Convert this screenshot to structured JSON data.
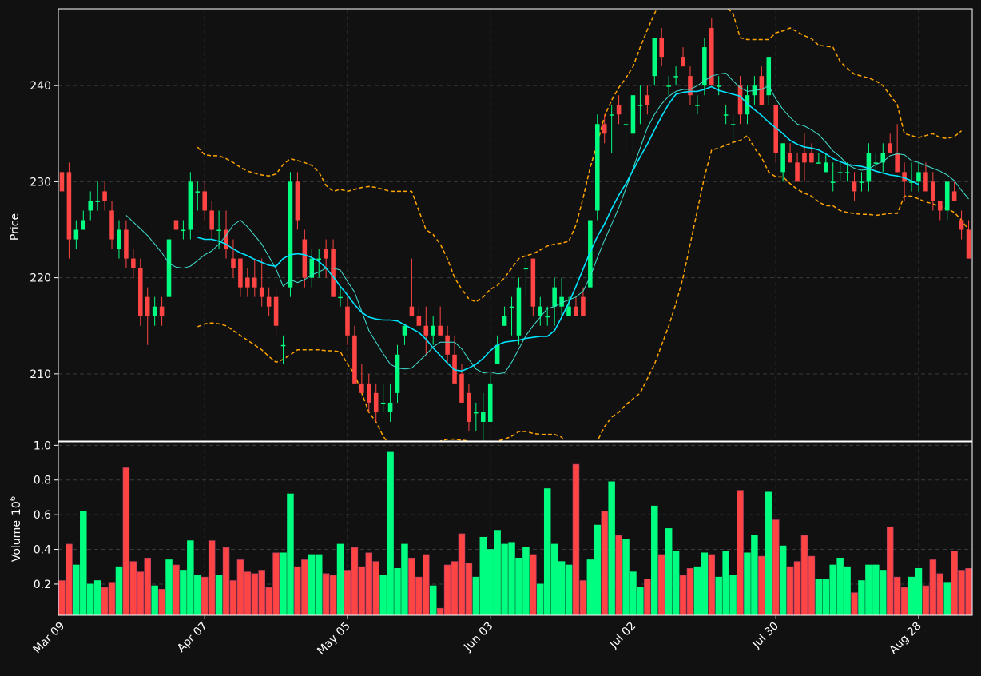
{
  "colors": {
    "background": "#111111",
    "frame": "#ffffff",
    "grid": "#3a3a3a",
    "up": "#00ff80",
    "down": "#ff4444",
    "ma_fast": "#40e0d0",
    "ma_slow": "#00e5ff",
    "bands": "#ffa500",
    "text": "#ffffff"
  },
  "chart_data": {
    "type": "candlestick",
    "title": "",
    "price_panel": {
      "ylabel": "Price",
      "ylim": [
        203,
        248
      ],
      "yticks": [
        210,
        220,
        230,
        240
      ],
      "grid": true
    },
    "volume_panel": {
      "ylabel": "Volume",
      "ylabel_exponent": "6",
      "ylim": [
        0.02,
        1.02
      ],
      "yticks": [
        0.2,
        0.4,
        0.6,
        0.8,
        1.0
      ],
      "grid": true
    },
    "x_ticks": [
      {
        "label": "Mar 09",
        "index": 0
      },
      {
        "label": "Apr 07",
        "index": 20
      },
      {
        "label": "May 05",
        "index": 40
      },
      {
        "label": "Jun 03",
        "index": 60
      },
      {
        "label": "Jul 02",
        "index": 80
      },
      {
        "label": "Jul 30",
        "index": 100
      },
      {
        "label": "Aug 28",
        "index": 120
      }
    ],
    "candles": [
      [
        231,
        232,
        228,
        229
      ],
      [
        231,
        232,
        222,
        224
      ],
      [
        224,
        226,
        223,
        225
      ],
      [
        225,
        227,
        225,
        226
      ],
      [
        227,
        229,
        226,
        228
      ],
      [
        228,
        230,
        227,
        228
      ],
      [
        229,
        230,
        227,
        228
      ],
      [
        227,
        228,
        223,
        224
      ],
      [
        223,
        226,
        222,
        225
      ],
      [
        225,
        226,
        221,
        222
      ],
      [
        222,
        223,
        220,
        221
      ],
      [
        221,
        222,
        215,
        216
      ],
      [
        218,
        219,
        213,
        216
      ],
      [
        216,
        218,
        215,
        217
      ],
      [
        217,
        218,
        215,
        216
      ],
      [
        218,
        225,
        218,
        224
      ],
      [
        226,
        226,
        225,
        225
      ],
      [
        225,
        226,
        224,
        225
      ],
      [
        225,
        231,
        224,
        230
      ],
      [
        229,
        230,
        227,
        229
      ],
      [
        229,
        230,
        226,
        227
      ],
      [
        227,
        228,
        224,
        225
      ],
      [
        225,
        227,
        223,
        225
      ],
      [
        225,
        227,
        222,
        223
      ],
      [
        222,
        224,
        220,
        221
      ],
      [
        222,
        222,
        218,
        219
      ],
      [
        220,
        221,
        218,
        219
      ],
      [
        220,
        222,
        218,
        219
      ],
      [
        219,
        222,
        217,
        218
      ],
      [
        218,
        219,
        216,
        217
      ],
      [
        218,
        219,
        214,
        215
      ],
      [
        213,
        214,
        211,
        213
      ],
      [
        219,
        231,
        218,
        230
      ],
      [
        230,
        231,
        225,
        226
      ],
      [
        224,
        225,
        219,
        220
      ],
      [
        220,
        223,
        219,
        222
      ],
      [
        222,
        223,
        220,
        222
      ],
      [
        223,
        224,
        220,
        222
      ],
      [
        223,
        224,
        218,
        218
      ],
      [
        218,
        219,
        217,
        218
      ],
      [
        217,
        218,
        213,
        214
      ],
      [
        214,
        215,
        209,
        209
      ],
      [
        209,
        211,
        208,
        208
      ],
      [
        209,
        210,
        206,
        207
      ],
      [
        208,
        209,
        205,
        206
      ],
      [
        207,
        209,
        206,
        207
      ],
      [
        206,
        209,
        205,
        207
      ],
      [
        208,
        213,
        207,
        212
      ],
      [
        214,
        215,
        213,
        215
      ],
      [
        217,
        222,
        216,
        216
      ],
      [
        216,
        217,
        215,
        215
      ],
      [
        215,
        217,
        212,
        214
      ],
      [
        214,
        216,
        213,
        215
      ],
      [
        215,
        217,
        214,
        214
      ],
      [
        214,
        215,
        211,
        212
      ],
      [
        212,
        214,
        209,
        209
      ],
      [
        210,
        211,
        207,
        207
      ],
      [
        208,
        209,
        204,
        205
      ],
      [
        206,
        207,
        204,
        206
      ],
      [
        205,
        208,
        203,
        206
      ],
      [
        205,
        210,
        205,
        209
      ],
      [
        211,
        214,
        211,
        213
      ],
      [
        215,
        217,
        215,
        216
      ],
      [
        217,
        218,
        214,
        217
      ],
      [
        214,
        220,
        213,
        219
      ],
      [
        221,
        222,
        218,
        221
      ],
      [
        222,
        222,
        216,
        217
      ],
      [
        216,
        218,
        215,
        217
      ],
      [
        216,
        217,
        215,
        216
      ],
      [
        217,
        220,
        215,
        219
      ],
      [
        217,
        220,
        216,
        218
      ],
      [
        216,
        218,
        216,
        217
      ],
      [
        217,
        218,
        216,
        216
      ],
      [
        218,
        219,
        216,
        216
      ],
      [
        219,
        226,
        219,
        226
      ],
      [
        227,
        237,
        226,
        236
      ],
      [
        236,
        237,
        234,
        235
      ],
      [
        237,
        238,
        233,
        237
      ],
      [
        238,
        239,
        236,
        237
      ],
      [
        236,
        237,
        233,
        236
      ],
      [
        235,
        239,
        233,
        239
      ],
      [
        238,
        240,
        236,
        238
      ],
      [
        239,
        240,
        237,
        238
      ],
      [
        241,
        245,
        240,
        245
      ],
      [
        245,
        246,
        242,
        243
      ],
      [
        240,
        241,
        239,
        240
      ],
      [
        241,
        242,
        240,
        241
      ],
      [
        243,
        244,
        242,
        242
      ],
      [
        241,
        242,
        238,
        239
      ],
      [
        238,
        239,
        237,
        238
      ],
      [
        240,
        245,
        239,
        244
      ],
      [
        246,
        247,
        240,
        240
      ],
      [
        240,
        241,
        239,
        240
      ],
      [
        237,
        238,
        236,
        237
      ],
      [
        236,
        237,
        234,
        236
      ],
      [
        240,
        241,
        236,
        237
      ],
      [
        237,
        240,
        236,
        239
      ],
      [
        239,
        241,
        238,
        240
      ],
      [
        241,
        242,
        238,
        238
      ],
      [
        239,
        243,
        238,
        243
      ],
      [
        238,
        238,
        232,
        233
      ],
      [
        231,
        234,
        230,
        234
      ],
      [
        233,
        234,
        232,
        232
      ],
      [
        232,
        233,
        230,
        230
      ],
      [
        233,
        235,
        230,
        232
      ],
      [
        233,
        234,
        232,
        232
      ],
      [
        232,
        233,
        232,
        232
      ],
      [
        231,
        233,
        231,
        232
      ],
      [
        230,
        232,
        229,
        230
      ],
      [
        231,
        232,
        230,
        231
      ],
      [
        231,
        232,
        230,
        231
      ],
      [
        230,
        231,
        228,
        229
      ],
      [
        230,
        231,
        229,
        230
      ],
      [
        230,
        234,
        229,
        233
      ],
      [
        232,
        233,
        231,
        232
      ],
      [
        232,
        234,
        231,
        233
      ],
      [
        234,
        235,
        233,
        233
      ],
      [
        233,
        236,
        231,
        231
      ],
      [
        231,
        232,
        228,
        230
      ],
      [
        230,
        232,
        229,
        230
      ],
      [
        230,
        232,
        229,
        231
      ],
      [
        231,
        232,
        229,
        229
      ],
      [
        230,
        231,
        227,
        228
      ],
      [
        228,
        228,
        226,
        227
      ],
      [
        227,
        230,
        226,
        230
      ],
      [
        229,
        230,
        228,
        228
      ],
      [
        226,
        227,
        224,
        225
      ],
      [
        225,
        226,
        222,
        222
      ]
    ],
    "volume": [
      0.22,
      0.43,
      0.31,
      0.62,
      0.2,
      0.22,
      0.18,
      0.21,
      0.3,
      0.87,
      0.33,
      0.27,
      0.35,
      0.19,
      0.17,
      0.34,
      0.31,
      0.28,
      0.45,
      0.25,
      0.24,
      0.45,
      0.25,
      0.41,
      0.22,
      0.34,
      0.27,
      0.26,
      0.28,
      0.18,
      0.38,
      0.38,
      0.72,
      0.3,
      0.34,
      0.37,
      0.37,
      0.26,
      0.25,
      0.43,
      0.28,
      0.41,
      0.3,
      0.38,
      0.33,
      0.25,
      0.96,
      0.29,
      0.43,
      0.35,
      0.24,
      0.37,
      0.19,
      0.06,
      0.31,
      0.33,
      0.49,
      0.32,
      0.24,
      0.47,
      0.4,
      0.51,
      0.43,
      0.44,
      0.35,
      0.41,
      0.37,
      0.2,
      0.75,
      0.43,
      0.33,
      0.31,
      0.89,
      0.22,
      0.34,
      0.54,
      0.62,
      0.79,
      0.48,
      0.46,
      0.27,
      0.18,
      0.23,
      0.65,
      0.37,
      0.52,
      0.39,
      0.25,
      0.29,
      0.3,
      0.38,
      0.37,
      0.24,
      0.39,
      0.25,
      0.74,
      0.38,
      0.48,
      0.36,
      0.73,
      0.57,
      0.42,
      0.3,
      0.33,
      0.48,
      0.36,
      0.23,
      0.23,
      0.31,
      0.35,
      0.3,
      0.15,
      0.22,
      0.31,
      0.31,
      0.28,
      0.53,
      0.24,
      0.18,
      0.24,
      0.29,
      0.19,
      0.34,
      0.26,
      0.21,
      0.39,
      0.28,
      0.29
    ],
    "ma_fast": [
      null,
      null,
      null,
      null,
      null,
      null,
      null,
      null,
      null,
      226.5,
      225.8,
      225.1,
      224.4,
      223.5,
      222.6,
      221.5,
      221.1,
      221.0,
      221.2,
      221.8,
      222.4,
      222.8,
      223.5,
      224.4,
      225.5,
      226.0,
      225.3,
      224.4,
      223.5,
      222.2,
      220.9,
      219.1,
      219.8,
      219.5,
      219.8,
      220.3,
      220.6,
      221.0,
      221.0,
      220.8,
      219.6,
      218.5,
      216.5,
      214.5,
      213.3,
      212.1,
      211.0,
      210.6,
      210.5,
      210.6,
      211.3,
      212.0,
      212.8,
      213.3,
      213.3,
      213.3,
      212.6,
      211.5,
      210.5,
      210.1,
      210.2,
      210.0,
      210.1,
      211.2,
      212.6,
      214.0,
      215.0,
      215.9,
      216.8,
      217.0,
      217.4,
      217.7,
      218.0,
      218.6,
      220.1,
      222.1,
      223.9,
      225.6,
      227.3,
      229.3,
      231.4,
      233.5,
      235.6,
      237.0,
      238.1,
      238.9,
      239.4,
      239.6,
      239.6,
      240.0,
      240.5,
      241.0,
      241.2,
      241.3,
      240.5,
      239.8,
      239.4,
      239.5,
      239.6,
      240.0,
      238.6,
      237.5,
      236.7,
      236.0,
      235.8,
      235.4,
      234.9,
      234.1,
      233.2,
      232.6,
      231.8,
      231.4,
      231.2,
      231.3,
      231.8,
      232.1,
      232.7,
      232.9,
      232.8,
      232.2,
      232.0,
      231.7,
      231.4,
      231.1,
      230.7,
      230.1,
      229.1,
      228.2
    ],
    "ma_slow": [
      null,
      null,
      null,
      null,
      null,
      null,
      null,
      null,
      null,
      null,
      null,
      null,
      null,
      null,
      null,
      null,
      null,
      null,
      null,
      224.2,
      224.0,
      224.0,
      223.8,
      223.5,
      223.0,
      222.6,
      222.3,
      221.9,
      221.6,
      221.3,
      221.2,
      222.0,
      222.4,
      222.5,
      222.4,
      222.1,
      221.7,
      221.0,
      220.1,
      219.1,
      218.2,
      217.2,
      216.4,
      215.9,
      215.7,
      215.6,
      215.6,
      215.5,
      215.1,
      214.7,
      214.3,
      213.6,
      212.7,
      211.9,
      211.1,
      210.4,
      210.3,
      210.6,
      211.0,
      211.6,
      212.4,
      213.0,
      213.3,
      213.4,
      213.5,
      213.7,
      213.8,
      213.9,
      213.9,
      214.5,
      215.9,
      217.4,
      219.1,
      220.9,
      222.7,
      224.3,
      225.6,
      227.2,
      228.6,
      229.8,
      231.2,
      232.6,
      233.9,
      235.4,
      236.8,
      238.1,
      239.1,
      239.3,
      239.4,
      239.4,
      239.6,
      239.9,
      239.5,
      239.3,
      239.1,
      238.9,
      238.1,
      237.5,
      236.9,
      236.2,
      235.6,
      235.0,
      234.3,
      233.9,
      233.6,
      233.5,
      233.3,
      232.9,
      232.4,
      232.1,
      231.8,
      231.7,
      231.6,
      231.4,
      231.1,
      230.9,
      230.7,
      230.6,
      230.4,
      230.1,
      229.7
    ],
    "band_upper": [
      null,
      null,
      null,
      null,
      null,
      null,
      null,
      null,
      null,
      null,
      null,
      null,
      null,
      null,
      null,
      null,
      null,
      null,
      null,
      233.6,
      232.8,
      232.7,
      232.7,
      232.4,
      232.0,
      231.5,
      231.1,
      230.9,
      230.7,
      230.6,
      230.8,
      231.8,
      232.4,
      232.2,
      232.0,
      231.7,
      231.0,
      229.6,
      229.0,
      229.2,
      229.0,
      229.2,
      229.4,
      229.5,
      229.4,
      229.2,
      229.0,
      229.0,
      229.0,
      229.0,
      227.0,
      225.0,
      224.5,
      223.5,
      222.0,
      220.0,
      218.8,
      217.8,
      217.5,
      218.0,
      218.8,
      219.2,
      220.0,
      221.0,
      222.0,
      222.3,
      222.5,
      222.9,
      223.3,
      223.5,
      223.6,
      223.8,
      225.5,
      228.3,
      231.5,
      234.0,
      236.8,
      238.5,
      239.8,
      240.8,
      242.0,
      244.0,
      245.8,
      247.5,
      249.0,
      250.0,
      250.5,
      250.5,
      250.0,
      249.5,
      249.0,
      248.8,
      248.5,
      248.2,
      247.5,
      245.0,
      244.8,
      244.8,
      244.8,
      244.8,
      245.5,
      245.7,
      246.0,
      245.6,
      245.2,
      244.9,
      244.2,
      244.1,
      244.0,
      242.5,
      241.8,
      241.2,
      241.0,
      240.8,
      240.5,
      240.0,
      239.0,
      238.0,
      235.0,
      234.8,
      234.6,
      234.8,
      235.0,
      234.6,
      234.5,
      234.7,
      235.3
    ],
    "band_lower": [
      null,
      null,
      null,
      null,
      null,
      null,
      null,
      null,
      null,
      null,
      null,
      null,
      null,
      null,
      null,
      null,
      null,
      null,
      null,
      214.9,
      215.2,
      215.3,
      215.2,
      215.0,
      214.5,
      214.0,
      213.5,
      213.0,
      212.5,
      211.8,
      211.2,
      211.5,
      212.0,
      212.5,
      212.5,
      212.5,
      212.5,
      212.4,
      212.4,
      212.3,
      211.0,
      210.0,
      208.0,
      206.0,
      205.0,
      203.5,
      202.5,
      202.0,
      201.9,
      201.5,
      201.0,
      201.5,
      202.5,
      203.0,
      203.2,
      203.2,
      203.1,
      203.0,
      202.6,
      202.5,
      202.6,
      203.0,
      203.2,
      203.5,
      204.0,
      204.0,
      203.8,
      203.7,
      203.7,
      203.7,
      203.4,
      202.3,
      200.0,
      200.5,
      201.8,
      203.0,
      204.5,
      205.5,
      206.0,
      206.8,
      207.4,
      208.0,
      209.5,
      211.0,
      213.0,
      215.0,
      217.3,
      220.0,
      223.5,
      227.0,
      230.5,
      233.3,
      233.5,
      233.8,
      234.1,
      234.3,
      234.8,
      233.5,
      232.5,
      231.0,
      230.5,
      230.5,
      229.8,
      229.2,
      228.8,
      228.5,
      227.9,
      227.5,
      227.5,
      227.0,
      226.8,
      226.7,
      226.6,
      226.6,
      226.5,
      226.6,
      226.7,
      226.7,
      228.5,
      228.5,
      228.2,
      227.9,
      227.7,
      227.4,
      227.2,
      226.8,
      226.0,
      225.0
    ]
  }
}
